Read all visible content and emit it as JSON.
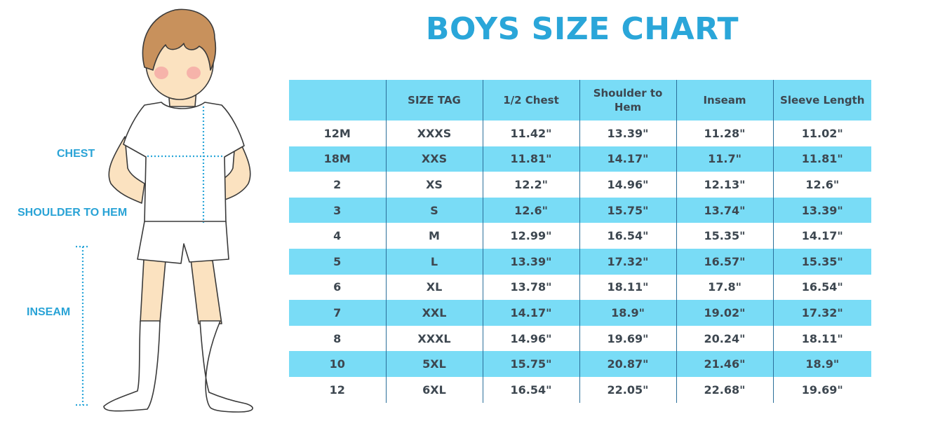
{
  "title": "BOYS SIZE CHART",
  "figure_labels": {
    "chest": "CHEST",
    "shoulder_to_hem": "SHOULDER TO HEM",
    "inseam": "INSEAM"
  },
  "colors": {
    "accent": "#2aa6d9",
    "row_band": "#79dcf6",
    "text": "#3d4750"
  },
  "table": {
    "headers": [
      "",
      "SIZE TAG",
      "1/2 Chest",
      "Shoulder to Hem",
      "Inseam",
      "Sleeve Length"
    ],
    "rows": [
      [
        "12M",
        "XXXS",
        "11.42\"",
        "13.39\"",
        "11.28\"",
        "11.02\""
      ],
      [
        "18M",
        "XXS",
        "11.81\"",
        "14.17\"",
        "11.7\"",
        "11.81\""
      ],
      [
        "2",
        "XS",
        "12.2\"",
        "14.96\"",
        "12.13\"",
        "12.6\""
      ],
      [
        "3",
        "S",
        "12.6\"",
        "15.75\"",
        "13.74\"",
        "13.39\""
      ],
      [
        "4",
        "M",
        "12.99\"",
        "16.54\"",
        "15.35\"",
        "14.17\""
      ],
      [
        "5",
        "L",
        "13.39\"",
        "17.32\"",
        "16.57\"",
        "15.35\""
      ],
      [
        "6",
        "XL",
        "13.78\"",
        "18.11\"",
        "17.8\"",
        "16.54\""
      ],
      [
        "7",
        "XXL",
        "14.17\"",
        "18.9\"",
        "19.02\"",
        "17.32\""
      ],
      [
        "8",
        "XXXL",
        "14.96\"",
        "19.69\"",
        "20.24\"",
        "18.11\""
      ],
      [
        "10",
        "5XL",
        "15.75\"",
        "20.87\"",
        "21.46\"",
        "18.9\""
      ],
      [
        "12",
        "6XL",
        "16.54\"",
        "22.05\"",
        "22.68\"",
        "19.69\""
      ]
    ]
  }
}
